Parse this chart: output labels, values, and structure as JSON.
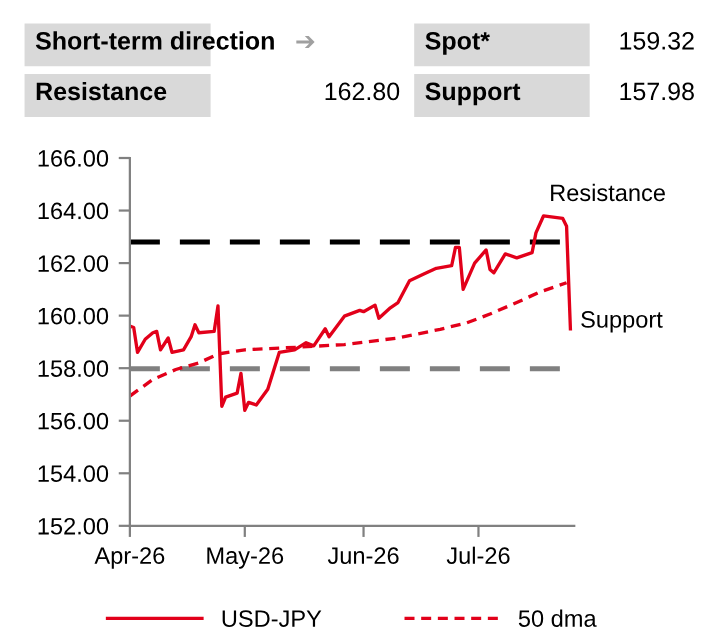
{
  "chart_data": {
    "type": "line",
    "annotations": [
      "Short-term direction",
      "➔",
      "Spot*",
      "159.32",
      "Resistance",
      "162.80",
      "Support",
      "157.98"
    ],
    "series": [
      {
        "name": "USD-JPY",
        "color": "#e2001a",
        "line_style": "solid",
        "x": [
          "2026-04-01",
          "2026-04-02",
          "2026-04-03",
          "2026-04-05",
          "2026-04-07",
          "2026-04-08",
          "2026-04-09",
          "2026-04-11",
          "2026-04-12",
          "2026-04-15",
          "2026-04-17",
          "2026-04-18",
          "2026-04-19",
          "2026-04-23",
          "2026-04-24",
          "2026-04-25",
          "2026-04-26",
          "2026-04-29",
          "2026-04-30",
          "2026-05-01",
          "2026-05-02",
          "2026-05-04",
          "2026-05-07",
          "2026-05-10",
          "2026-05-14",
          "2026-05-17",
          "2026-05-19",
          "2026-05-22",
          "2026-05-23",
          "2026-05-27",
          "2026-05-31",
          "2026-06-01",
          "2026-06-04",
          "2026-06-05",
          "2026-06-08",
          "2026-06-10",
          "2026-06-13",
          "2026-06-17",
          "2026-06-20",
          "2026-06-24",
          "2026-06-25",
          "2026-06-26",
          "2026-06-27",
          "2026-06-30",
          "2026-07-03",
          "2026-07-04",
          "2026-07-05",
          "2026-07-08",
          "2026-07-11",
          "2026-07-15",
          "2026-07-16",
          "2026-07-18",
          "2026-07-23",
          "2026-07-24",
          "2026-07-25"
        ],
        "values": [
          159.6,
          159.55,
          158.6,
          159.1,
          159.35,
          159.4,
          158.7,
          159.15,
          158.6,
          158.7,
          159.2,
          159.65,
          159.35,
          159.4,
          160.37,
          156.55,
          156.9,
          157.05,
          157.8,
          156.4,
          156.7,
          156.6,
          157.2,
          158.6,
          158.7,
          158.97,
          158.85,
          159.5,
          159.2,
          159.98,
          160.2,
          160.15,
          160.4,
          159.9,
          160.3,
          160.5,
          161.33,
          161.6,
          161.8,
          161.9,
          162.6,
          162.6,
          161.0,
          162.0,
          162.5,
          161.76,
          161.63,
          162.35,
          162.2,
          162.4,
          163.15,
          163.8,
          163.7,
          163.4,
          159.5
        ]
      },
      {
        "name": "50 dma",
        "color": "#e2001a",
        "line_style": "dashed",
        "x": [
          "2026-04-01",
          "2026-04-07",
          "2026-04-13",
          "2026-04-19",
          "2026-04-24",
          "2026-05-01",
          "2026-05-15",
          "2026-05-27",
          "2026-06-10",
          "2026-06-21",
          "2026-06-28",
          "2026-07-04",
          "2026-07-11",
          "2026-07-17",
          "2026-07-24"
        ],
        "values": [
          156.94,
          157.57,
          157.95,
          158.2,
          158.54,
          158.7,
          158.8,
          158.9,
          159.15,
          159.48,
          159.73,
          160.06,
          160.5,
          160.9,
          161.25
        ]
      }
    ],
    "ref_lines": [
      {
        "axis": "y",
        "value": 162.8,
        "label": "Resistance",
        "color": "#000000",
        "line_style": "dashed"
      },
      {
        "axis": "y",
        "value": 157.98,
        "label": "Support",
        "color": "#808080",
        "line_style": "dashed"
      }
    ],
    "xlim": [
      "2026-04-01",
      "2026-07-26"
    ],
    "xticks": [
      {
        "value": "2026-04-01",
        "label": "Apr-26"
      },
      {
        "value": "2026-05-01",
        "label": "May-26"
      },
      {
        "value": "2026-06-01",
        "label": "Jun-26"
      },
      {
        "value": "2026-07-01",
        "label": "Jul-26"
      }
    ],
    "ylim": [
      152,
      166
    ],
    "yticks": [
      {
        "value": 152,
        "label": "152.00"
      },
      {
        "value": 154,
        "label": "154.00"
      },
      {
        "value": 156,
        "label": "156.00"
      },
      {
        "value": 158,
        "label": "158.00"
      },
      {
        "value": 160,
        "label": "160.00"
      },
      {
        "value": 162,
        "label": "162.00"
      },
      {
        "value": 164,
        "label": "164.00"
      },
      {
        "value": 166,
        "label": "166.00"
      }
    ],
    "grid": false,
    "legend": "bottom",
    "marker": "none"
  }
}
